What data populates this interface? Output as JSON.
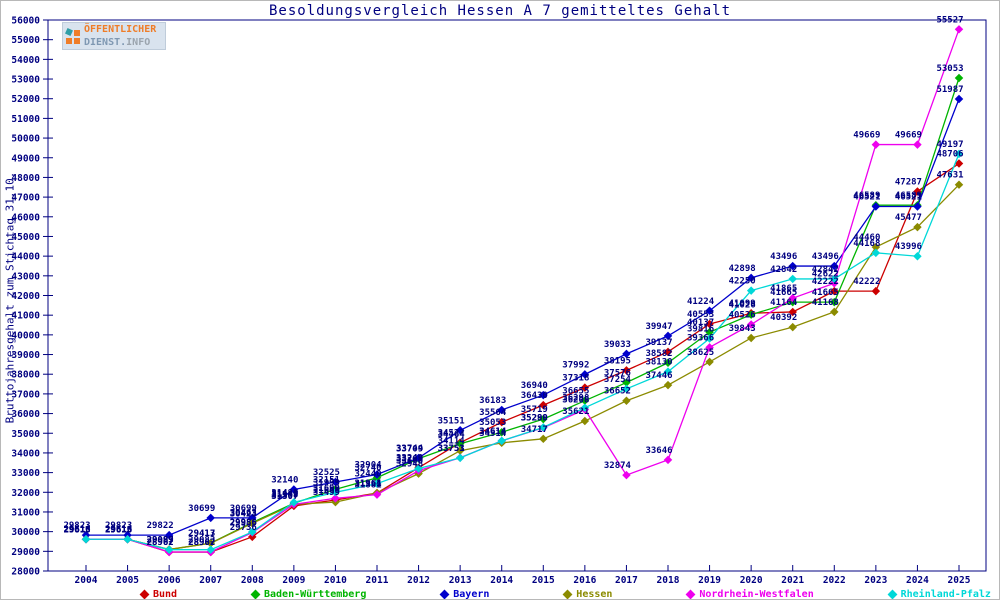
{
  "title": "Besoldungsvergleich Hessen A 7 gemitteltes Gehalt",
  "y_axis_label": "Bruttojahresgehalt zum Stichtag 31.10.",
  "logo": {
    "line1": "ÖFFENTLICHER",
    "line2_part1": "DIENST.",
    "line2_part2": "INFO"
  },
  "colors": {
    "axis_text": "#000080",
    "plot_border": "#000080",
    "point_label": "#000080",
    "logo_orange": "#ef7d28",
    "logo_gray_blue": "#7f98b2"
  },
  "chart_data": {
    "type": "line",
    "x": [
      2004,
      2005,
      2006,
      2007,
      2008,
      2009,
      2010,
      2011,
      2012,
      2013,
      2014,
      2015,
      2016,
      2017,
      2018,
      2019,
      2020,
      2021,
      2022,
      2023,
      2024,
      2025
    ],
    "ylim": [
      28000,
      56000
    ],
    "ytick_step": 1000,
    "grid": false,
    "legend_position": "bottom",
    "point_labels": true,
    "series": [
      {
        "name": "Bund",
        "color": "#cc0000",
        "values": [
          29616,
          29616,
          28962,
          28962,
          29736,
          31307,
          31609,
          31961,
          33249,
          34522,
          35564,
          36430,
          37318,
          38195,
          39137,
          40553,
          41099,
          41164,
          42222,
          42222,
          47287,
          48706
        ]
      },
      {
        "name": "Baden-Württemberg",
        "color": "#00b400",
        "values": [
          29613,
          29613,
          29089,
          29417,
          30463,
          31442,
          32151,
          32740,
          33709,
          34464,
          35053,
          35719,
          36655,
          37576,
          38582,
          40137,
          41026,
          41665,
          41665,
          46589,
          46589,
          53053
        ]
      },
      {
        "name": "Bayern",
        "color": "#0000cc",
        "values": [
          29823,
          29823,
          29822,
          30699,
          30699,
          32140,
          32525,
          32904,
          33744,
          35151,
          36183,
          36940,
          37992,
          39033,
          39947,
          41224,
          42898,
          43496,
          43496,
          46521,
          46521,
          51987
        ]
      },
      {
        "name": "Hessen",
        "color": "#8b8b00",
        "values": [
          29613,
          29613,
          29097,
          29413,
          30423,
          31387,
          31499,
          31964,
          32948,
          34114,
          34514,
          34717,
          35621,
          36652,
          37446,
          38625,
          39843,
          40392,
          41168,
          44460,
          45477,
          47631
        ]
      },
      {
        "name": "Nordrhein-Westfalen",
        "color": "#ee00ee",
        "values": [
          29616,
          29616,
          28967,
          28967,
          29956,
          31389,
          31699,
          31881,
          33100,
          33753,
          34614,
          35280,
          36208,
          32874,
          33646,
          39366,
          40526,
          41865,
          42622,
          49669,
          49669,
          55527
        ]
      },
      {
        "name": "Rheinland-Pfalz",
        "color": "#00d8d8",
        "values": [
          29613,
          29613,
          29083,
          29083,
          29986,
          31489,
          31999,
          32440,
          33209,
          33751,
          34614,
          35299,
          36298,
          37254,
          38130,
          39816,
          42250,
          42842,
          42842,
          44168,
          43996,
          49197
        ]
      }
    ]
  }
}
